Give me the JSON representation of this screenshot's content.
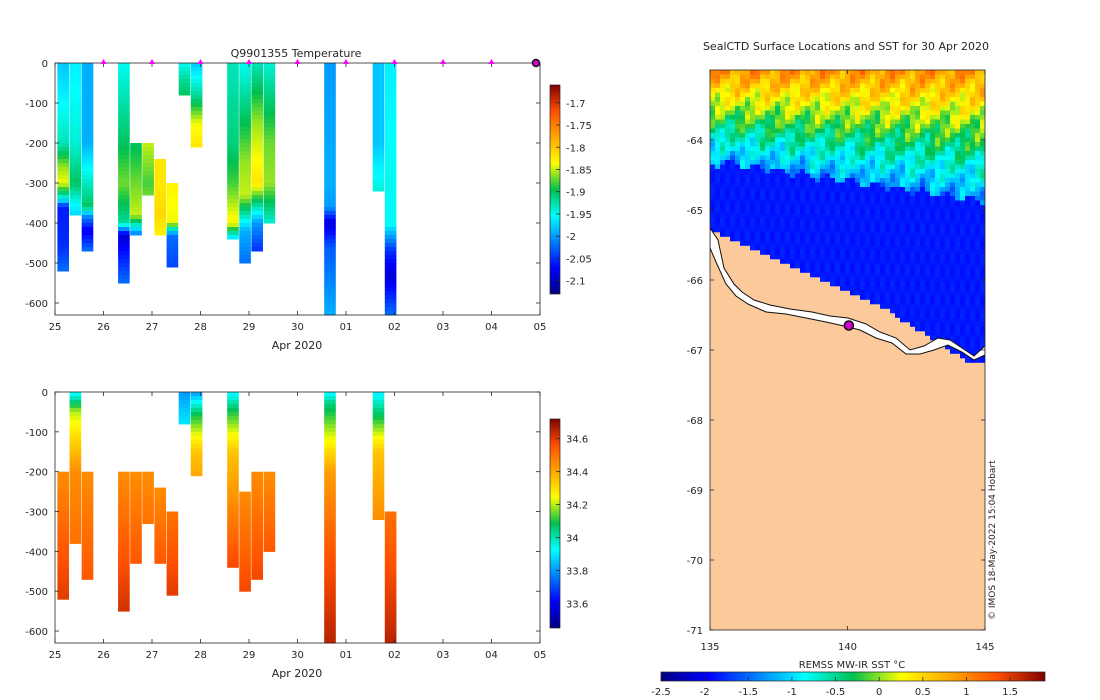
{
  "chart_data": [
    {
      "type": "heatmap",
      "title": "Q9901355  Temperature",
      "xlabel": "Apr 2020",
      "ylabel": "",
      "x_ticklabels": [
        "25",
        "26",
        "27",
        "28",
        "29",
        "30",
        "01",
        "02",
        "03",
        "04",
        "05"
      ],
      "y_ticks": [
        0,
        -100,
        -200,
        -300,
        -400,
        -500,
        -600
      ],
      "ylim": [
        -630,
        0
      ],
      "colorbar_ticks": [
        "-1.7",
        "-1.75",
        "-1.8",
        "-1.85",
        "-1.9",
        "-1.95",
        "-2",
        "-2.05",
        "-2.1"
      ],
      "colorbar_range": [
        -2.13,
        -1.66
      ],
      "profiles": [
        {
          "day": 25.05,
          "max_depth": 520,
          "values": [
            [
              0,
              -1.98
            ],
            [
              200,
              -1.93
            ],
            [
              260,
              -1.86
            ],
            [
              300,
              -1.84
            ],
            [
              340,
              -1.95
            ],
            [
              360,
              -2.06
            ],
            [
              460,
              -2.05
            ],
            [
              520,
              -2.02
            ]
          ]
        },
        {
          "day": 25.3,
          "max_depth": 380,
          "values": [
            [
              0,
              -1.96
            ],
            [
              200,
              -1.94
            ],
            [
              300,
              -1.9
            ],
            [
              360,
              -1.96
            ],
            [
              380,
              -1.97
            ]
          ]
        },
        {
          "day": 25.55,
          "max_depth": 470,
          "values": [
            [
              0,
              -1.99
            ],
            [
              200,
              -1.99
            ],
            [
              360,
              -1.9
            ],
            [
              380,
              -2.0
            ],
            [
              420,
              -2.08
            ],
            [
              470,
              -2.02
            ]
          ]
        },
        {
          "day": 26.3,
          "max_depth": 550,
          "values": [
            [
              0,
              -1.95
            ],
            [
              200,
              -1.9
            ],
            [
              300,
              -1.87
            ],
            [
              400,
              -1.92
            ],
            [
              430,
              -2.09
            ],
            [
              550,
              -2.02
            ]
          ]
        },
        {
          "day": 26.55,
          "max_depth": 430,
          "values": [
            [
              200,
              -1.9
            ],
            [
              300,
              -1.87
            ],
            [
              380,
              -1.85
            ],
            [
              430,
              -2.02
            ]
          ]
        },
        {
          "day": 26.8,
          "max_depth": 330,
          "values": [
            [
              200,
              -1.85
            ],
            [
              300,
              -1.88
            ],
            [
              330,
              -1.87
            ]
          ]
        },
        {
          "day": 27.05,
          "max_depth": 430,
          "values": [
            [
              240,
              -1.82
            ],
            [
              320,
              -1.82
            ],
            [
              380,
              -1.81
            ],
            [
              430,
              -1.83
            ]
          ]
        },
        {
          "day": 27.3,
          "max_depth": 510,
          "values": [
            [
              300,
              -1.83
            ],
            [
              400,
              -1.84
            ],
            [
              430,
              -2.02
            ],
            [
              510,
              -2.04
            ]
          ]
        },
        {
          "day": 27.55,
          "max_depth": 80,
          "values": [
            [
              0,
              -1.95
            ],
            [
              40,
              -1.92
            ],
            [
              80,
              -1.9
            ]
          ]
        },
        {
          "day": 27.8,
          "max_depth": 210,
          "values": [
            [
              0,
              -1.98
            ],
            [
              80,
              -1.92
            ],
            [
              150,
              -1.84
            ],
            [
              210,
              -1.82
            ]
          ]
        },
        {
          "day": 28.55,
          "max_depth": 440,
          "values": [
            [
              0,
              -1.93
            ],
            [
              200,
              -1.91
            ],
            [
              300,
              -1.88
            ],
            [
              400,
              -1.83
            ],
            [
              440,
              -1.98
            ]
          ]
        },
        {
          "day": 28.8,
          "max_depth": 500,
          "values": [
            [
              0,
              -1.95
            ],
            [
              250,
              -1.86
            ],
            [
              330,
              -1.85
            ],
            [
              420,
              -1.99
            ],
            [
              500,
              -2.02
            ]
          ]
        },
        {
          "day": 29.05,
          "max_depth": 470,
          "values": [
            [
              0,
              -1.93
            ],
            [
              150,
              -1.86
            ],
            [
              300,
              -1.82
            ],
            [
              400,
              -2.0
            ],
            [
              470,
              -2.05
            ]
          ]
        },
        {
          "day": 29.3,
          "max_depth": 400,
          "values": [
            [
              0,
              -1.94
            ],
            [
              200,
              -1.87
            ],
            [
              300,
              -1.86
            ],
            [
              400,
              -1.94
            ]
          ]
        },
        {
          "day": 30.55,
          "max_depth": 630,
          "values": [
            [
              0,
              -2.0
            ],
            [
              300,
              -1.99
            ],
            [
              360,
              -2.0
            ],
            [
              400,
              -2.09
            ],
            [
              460,
              -2.03
            ],
            [
              630,
              -1.99
            ]
          ]
        },
        {
          "day": 31.55,
          "max_depth": 320,
          "values": [
            [
              0,
              -1.98
            ],
            [
              200,
              -1.98
            ],
            [
              320,
              -1.94
            ]
          ]
        },
        {
          "day": 31.8,
          "max_depth": 630,
          "values": [
            [
              0,
              -1.96
            ],
            [
              300,
              -1.95
            ],
            [
              400,
              -1.95
            ],
            [
              470,
              -2.05
            ],
            [
              530,
              -2.09
            ],
            [
              630,
              -2.02
            ]
          ]
        }
      ]
    },
    {
      "type": "heatmap",
      "title": "",
      "xlabel": "Apr 2020",
      "ylabel": "",
      "x_ticklabels": [
        "25",
        "26",
        "27",
        "28",
        "29",
        "30",
        "01",
        "02",
        "03",
        "04",
        "05"
      ],
      "y_ticks": [
        0,
        -100,
        -200,
        -300,
        -400,
        -500,
        -600
      ],
      "ylim": [
        -630,
        0
      ],
      "colorbar_ticks": [
        "34.6",
        "34.4",
        "34.2",
        "34",
        "33.8",
        "33.6"
      ],
      "colorbar_range": [
        33.45,
        34.72
      ],
      "profiles": [
        {
          "day": 25.05,
          "max_depth": 520,
          "values": [
            [
              200,
              34.45
            ],
            [
              400,
              34.55
            ],
            [
              520,
              34.6
            ]
          ]
        },
        {
          "day": 25.3,
          "max_depth": 380,
          "values": [
            [
              0,
              33.9
            ],
            [
              50,
              34.2
            ],
            [
              200,
              34.45
            ],
            [
              380,
              34.5
            ]
          ]
        },
        {
          "day": 25.55,
          "max_depth": 470,
          "values": [
            [
              200,
              34.45
            ],
            [
              470,
              34.55
            ]
          ]
        },
        {
          "day": 26.3,
          "max_depth": 550,
          "values": [
            [
              200,
              34.45
            ],
            [
              550,
              34.62
            ]
          ]
        },
        {
          "day": 26.55,
          "max_depth": 430,
          "values": [
            [
              200,
              34.45
            ],
            [
              430,
              34.55
            ]
          ]
        },
        {
          "day": 26.8,
          "max_depth": 330,
          "values": [
            [
              200,
              34.45
            ],
            [
              330,
              34.5
            ]
          ]
        },
        {
          "day": 27.05,
          "max_depth": 430,
          "values": [
            [
              240,
              34.45
            ],
            [
              430,
              34.55
            ]
          ]
        },
        {
          "day": 27.3,
          "max_depth": 510,
          "values": [
            [
              300,
              34.5
            ],
            [
              510,
              34.6
            ]
          ]
        },
        {
          "day": 27.55,
          "max_depth": 80,
          "values": [
            [
              0,
              33.8
            ],
            [
              80,
              33.9
            ]
          ]
        },
        {
          "day": 27.8,
          "max_depth": 210,
          "values": [
            [
              0,
              33.8
            ],
            [
              60,
              34.1
            ],
            [
              150,
              34.35
            ],
            [
              210,
              34.4
            ]
          ]
        },
        {
          "day": 28.55,
          "max_depth": 440,
          "values": [
            [
              0,
              33.9
            ],
            [
              50,
              34.1
            ],
            [
              150,
              34.35
            ],
            [
              440,
              34.58
            ]
          ]
        },
        {
          "day": 28.8,
          "max_depth": 500,
          "values": [
            [
              250,
              34.45
            ],
            [
              500,
              34.58
            ]
          ]
        },
        {
          "day": 29.05,
          "max_depth": 470,
          "values": [
            [
              200,
              34.45
            ],
            [
              470,
              34.58
            ]
          ]
        },
        {
          "day": 29.3,
          "max_depth": 400,
          "values": [
            [
              200,
              34.45
            ],
            [
              400,
              34.55
            ]
          ]
        },
        {
          "day": 30.55,
          "max_depth": 630,
          "values": [
            [
              0,
              33.9
            ],
            [
              30,
              34.05
            ],
            [
              100,
              34.2
            ],
            [
              200,
              34.42
            ],
            [
              400,
              34.55
            ],
            [
              630,
              34.65
            ]
          ]
        },
        {
          "day": 31.55,
          "max_depth": 320,
          "values": [
            [
              0,
              33.9
            ],
            [
              50,
              34.05
            ],
            [
              150,
              34.35
            ],
            [
              320,
              34.45
            ]
          ]
        },
        {
          "day": 31.8,
          "max_depth": 630,
          "values": [
            [
              300,
              34.5
            ],
            [
              630,
              34.65
            ]
          ]
        }
      ]
    },
    {
      "type": "heatmap",
      "title": "SealCTD Surface Locations and SST for 30 Apr 2020",
      "xlabel": "",
      "ylabel": "",
      "x_ticklabels": [
        "135",
        "140",
        "145"
      ],
      "y_ticklabels": [
        "-64",
        "-65",
        "-66",
        "-67",
        "-68",
        "-69",
        "-70",
        "-71"
      ],
      "xlim": [
        135,
        145
      ],
      "ylim": [
        -71,
        -63
      ],
      "colorbar_label": "REMSS MW-IR SST °C",
      "colorbar_ticks": [
        "-2.5",
        "-2",
        "-1.5",
        "-1",
        "-0.5",
        "0",
        "0.5",
        "1",
        "1.5"
      ],
      "colorbar_range": [
        -2.5,
        1.9
      ],
      "seal_location": {
        "lon": 140.05,
        "lat": -66.65
      },
      "credit": "© IMOS 18-May-2022 15:04 Hobart"
    }
  ]
}
